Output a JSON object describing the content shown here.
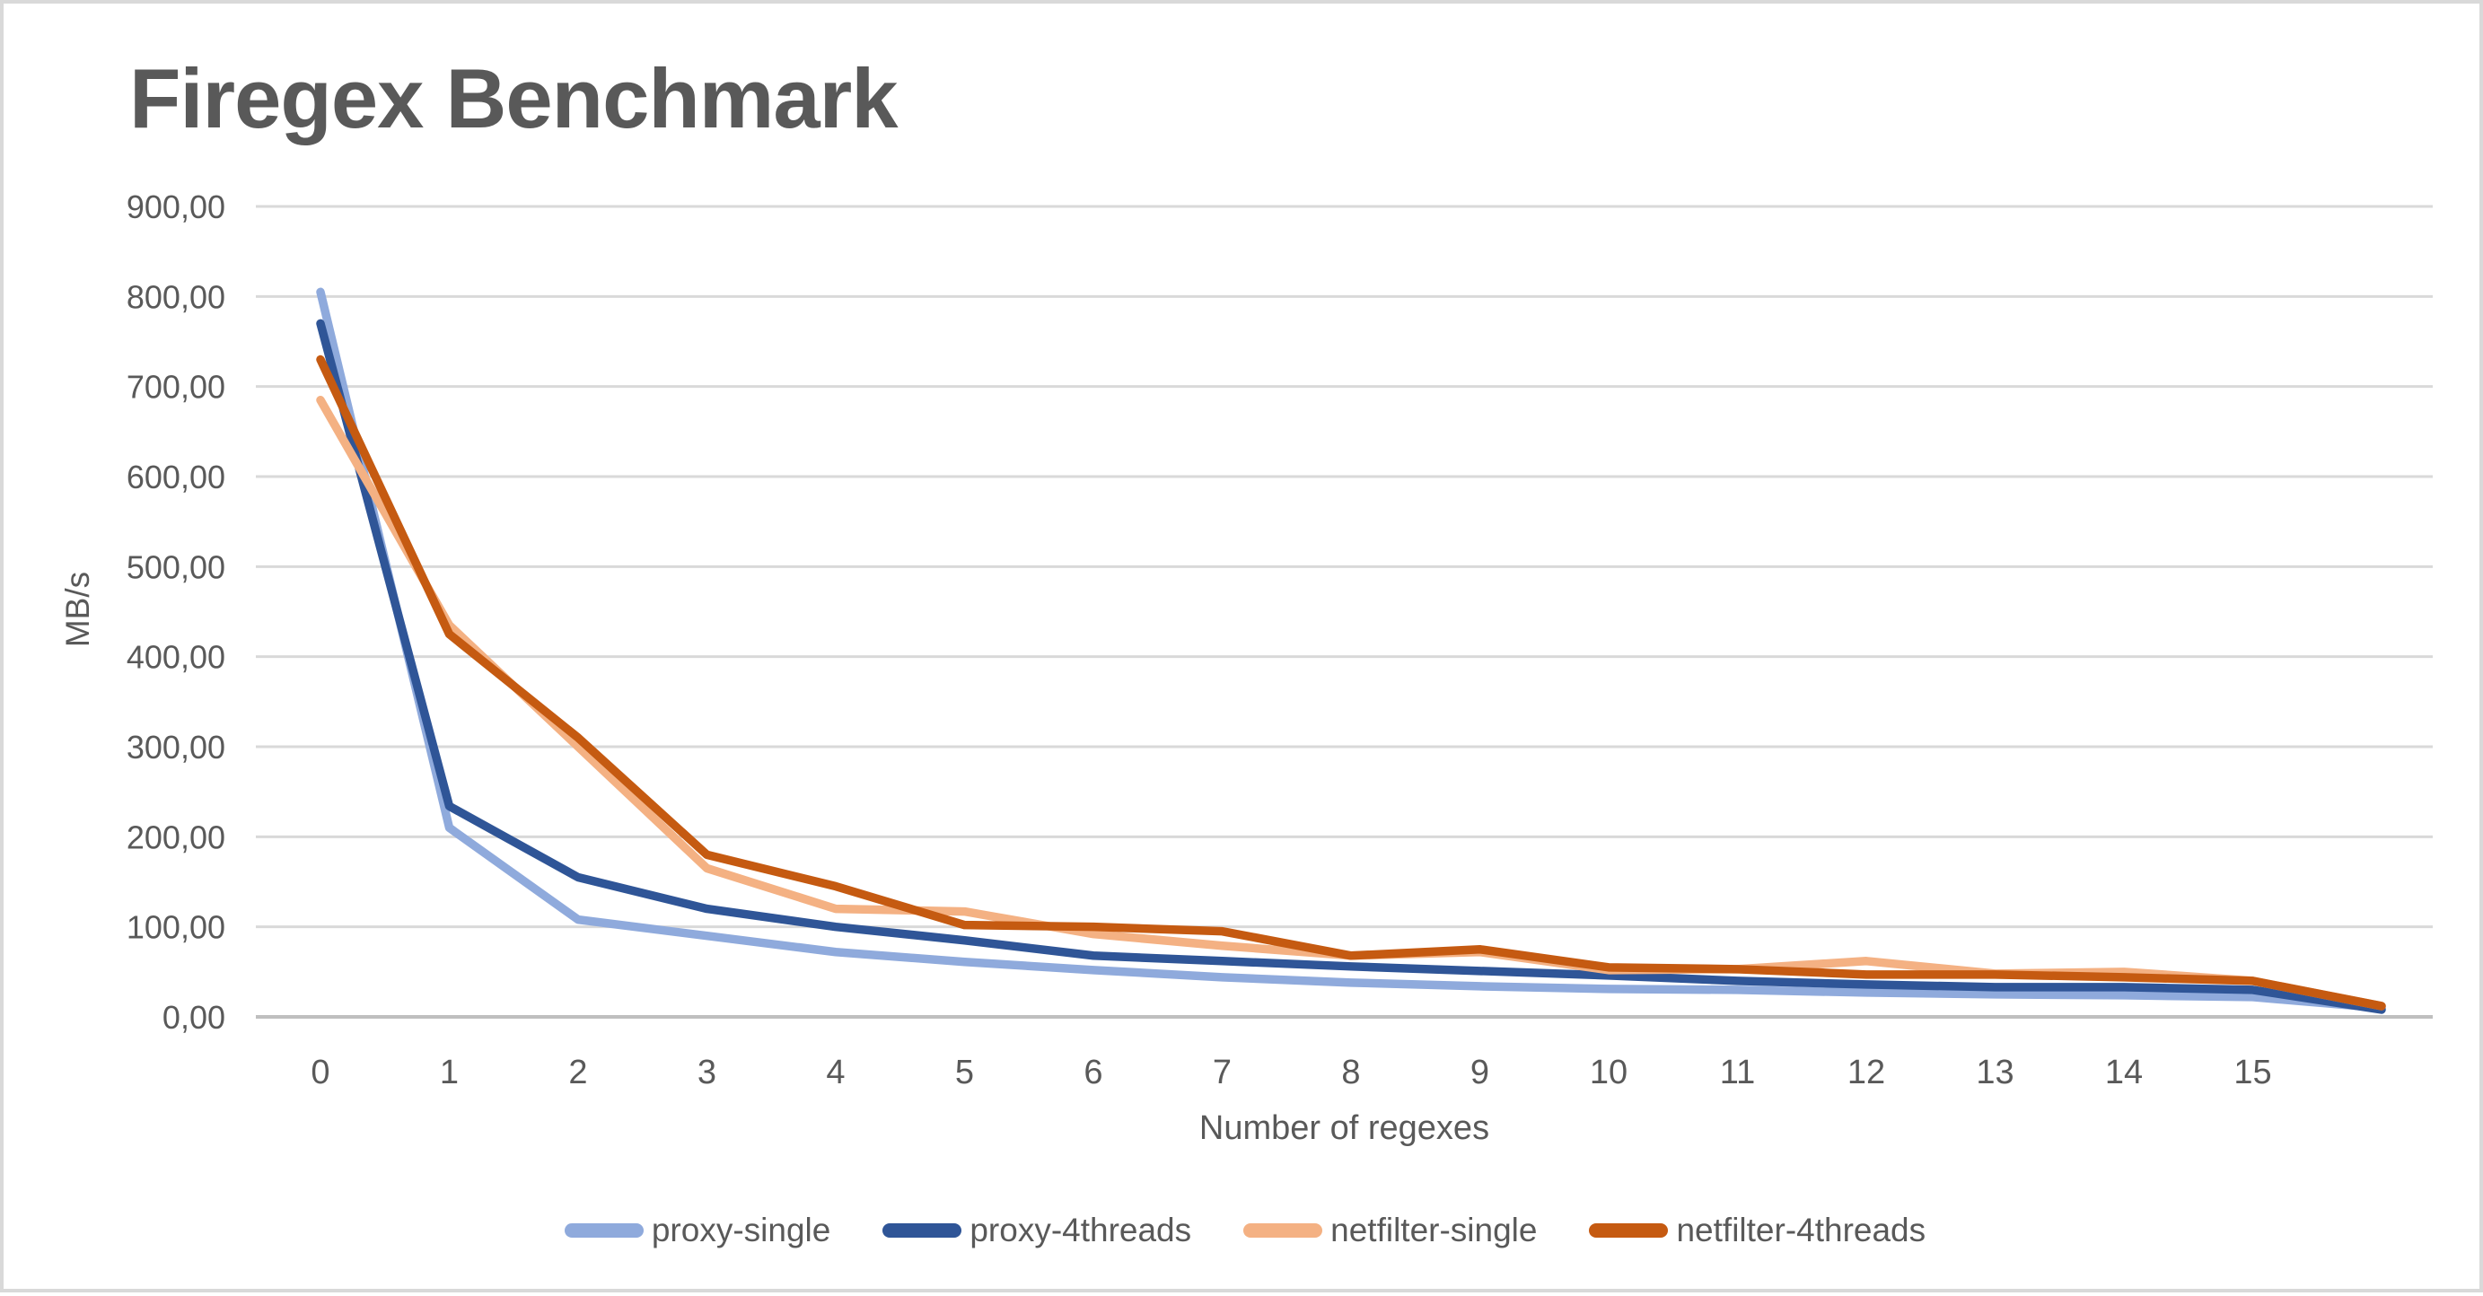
{
  "title": "Firegex Benchmark",
  "chart_data": {
    "type": "line",
    "title": "Firegex Benchmark",
    "xlabel": "Number of regexes",
    "ylabel": "MB/s",
    "x_tick_labels": [
      "0",
      "1",
      "2",
      "3",
      "4",
      "5",
      "6",
      "7",
      "8",
      "9",
      "10",
      "11",
      "12",
      "13",
      "14",
      "15"
    ],
    "y_tick_labels": [
      "0,00",
      "100,00",
      "200,00",
      "300,00",
      "400,00",
      "500,00",
      "600,00",
      "700,00",
      "800,00",
      "900,00"
    ],
    "ylim": [
      0,
      900
    ],
    "y_step": 100,
    "grid": "horizontal",
    "legend_position": "bottom",
    "decimal_separator": ",",
    "note": "lines extend one unlabeled category beyond tick 15",
    "series": [
      {
        "name": "proxy-single",
        "color": "#8FAADC",
        "values": [
          805,
          210,
          108,
          90,
          72,
          61,
          52,
          44,
          38,
          34,
          31,
          30,
          27,
          25,
          24,
          22,
          10
        ]
      },
      {
        "name": "proxy-4threads",
        "color": "#2F5597",
        "values": [
          770,
          234,
          155,
          120,
          100,
          85,
          68,
          62,
          56,
          51,
          46,
          40,
          36,
          33,
          33,
          30,
          8
        ]
      },
      {
        "name": "netfilter-single",
        "color": "#F4B183",
        "values": [
          685,
          435,
          300,
          165,
          120,
          117,
          92,
          79,
          68,
          72,
          52,
          53,
          62,
          48,
          50,
          40,
          12
        ]
      },
      {
        "name": "netfilter-4threads",
        "color": "#C55A11",
        "values": [
          730,
          425,
          310,
          180,
          145,
          102,
          100,
          95,
          68,
          75,
          55,
          53,
          47,
          47,
          44,
          40,
          12
        ]
      }
    ]
  },
  "colors": {
    "title_text": "#595959",
    "axis_text": "#595959",
    "gridline": "#D9D9D9",
    "axis_line": "#BFBFBF",
    "background": "#FFFFFF",
    "page_border": "#D9D9D9"
  }
}
